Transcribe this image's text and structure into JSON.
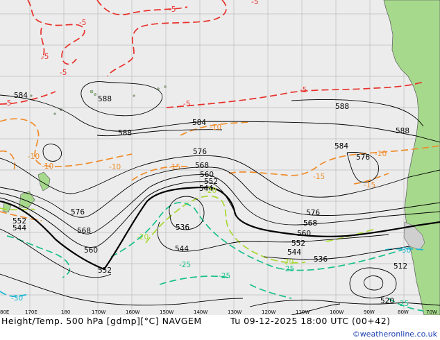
{
  "map": {
    "title": "Height/Temp. 500 hPa [gdmp][°C] NAVGEM",
    "valid_time": "Tu 09-12-2025 18:00 UTC (00+42)",
    "credit": "©weatheronline.co.uk",
    "colors": {
      "ocean": "#ececec",
      "land": "#a6d98c",
      "coast": "#666666",
      "height_contour": "#000000",
      "temp_minus5": "#e8302a",
      "temp_minus10_15": "#ef8c2a",
      "temp_minus20": "#a8d830",
      "temp_minus25": "#18c18a",
      "temp_minus30": "#19b6d4"
    },
    "longitude_labels": [
      "80E",
      "170E",
      "180",
      "170W",
      "160W",
      "150W",
      "140W",
      "130W",
      "120W",
      "110W",
      "100W",
      "90W",
      "80W",
      "70W"
    ],
    "height_labels": [
      "584",
      "588",
      "588",
      "584",
      "576",
      "568",
      "560",
      "552",
      "544",
      "588",
      "588",
      "584",
      "576",
      "576",
      "568",
      "560",
      "552",
      "544",
      "536",
      "512",
      "520",
      "552",
      "544",
      "568",
      "560",
      "552",
      "536",
      "544",
      "576"
    ],
    "temp_labels": [
      "-5",
      "-5",
      "-5",
      "-5",
      "-5",
      "-5",
      "-5",
      "-5",
      "-10",
      "-10",
      "-10",
      "-10",
      "-10",
      "-15",
      "-15",
      "-15",
      "-20",
      "-20",
      "-20",
      "-25",
      "-25",
      "-25",
      "-30",
      "-30",
      "-25"
    ]
  }
}
